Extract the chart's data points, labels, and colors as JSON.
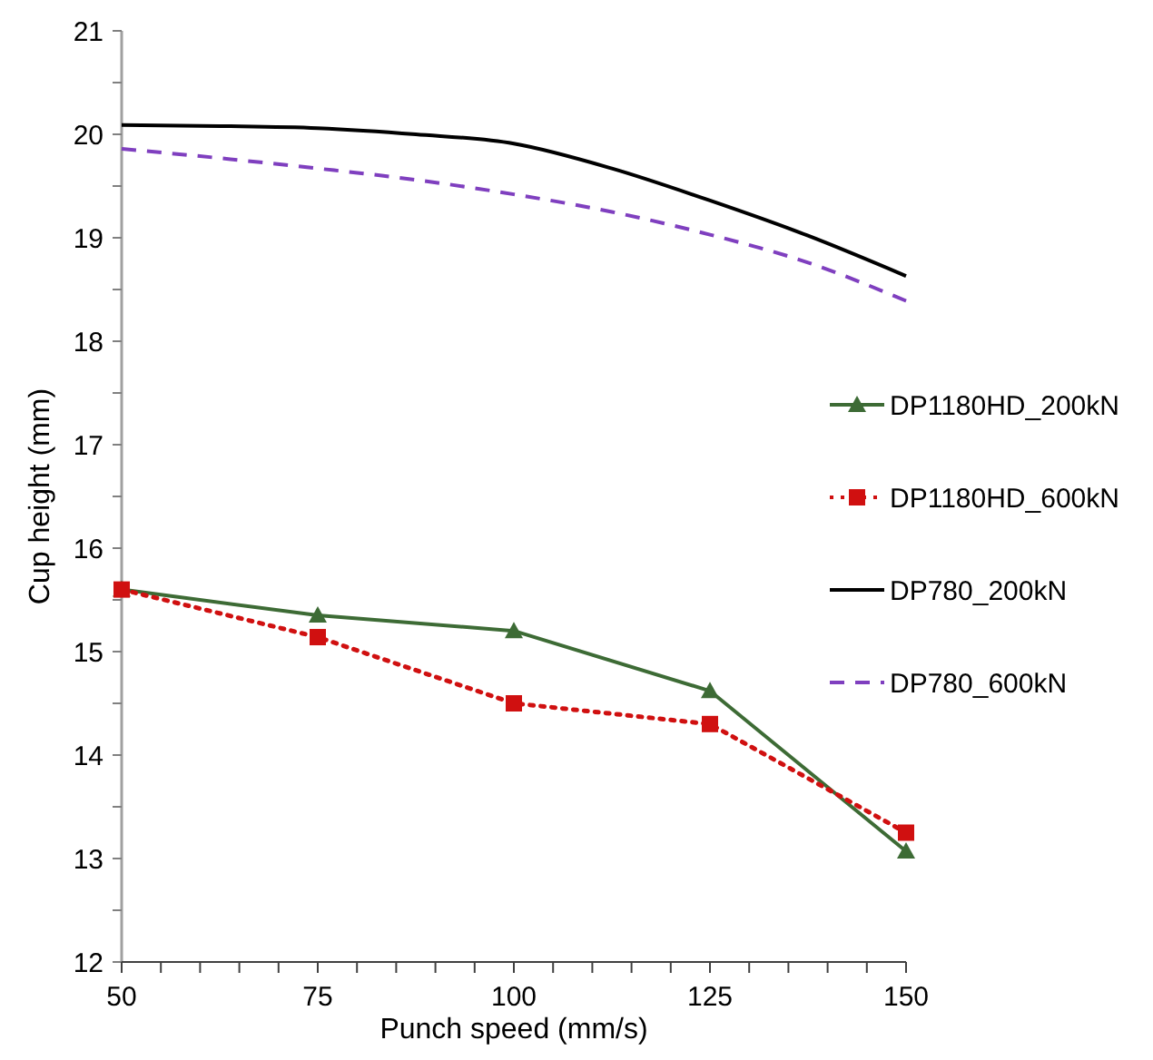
{
  "chart_data": {
    "type": "line",
    "xlabel": "Punch speed (mm/s)",
    "ylabel": "Cup height (mm)",
    "xlim": [
      50,
      150
    ],
    "xticks": [
      50,
      {
        "value": 55,
        "label": null
      },
      {
        "value": 60,
        "label": null
      },
      {
        "value": 65,
        "label": null
      },
      {
        "value": 70,
        "label": null
      },
      75,
      {
        "value": 80,
        "label": null
      },
      {
        "value": 85,
        "label": null
      },
      {
        "value": 90,
        "label": null
      },
      {
        "value": 95,
        "label": null
      },
      100,
      {
        "value": 105,
        "label": null
      },
      {
        "value": 110,
        "label": null
      },
      {
        "value": 115,
        "label": null
      },
      {
        "value": 120,
        "label": null
      },
      125,
      {
        "value": 130,
        "label": null
      },
      {
        "value": 135,
        "label": null
      },
      {
        "value": 140,
        "label": null
      },
      {
        "value": 145,
        "label": null
      },
      150
    ],
    "ylim": [
      12,
      21
    ],
    "yticks": [
      12,
      {
        "value": 12.5,
        "label": null
      },
      13,
      {
        "value": 13.5,
        "label": null
      },
      14,
      {
        "value": 14.5,
        "label": null
      },
      15,
      {
        "value": 15.5,
        "label": null
      },
      16,
      {
        "value": 16.5,
        "label": null
      },
      17,
      {
        "value": 17.5,
        "label": null
      },
      18,
      {
        "value": 18.5,
        "label": null
      },
      19,
      {
        "value": 19.5,
        "label": null
      },
      20,
      {
        "value": 20.5,
        "label": null
      },
      21
    ],
    "grid": false,
    "legend": "right",
    "series": [
      {
        "name": "DP1180HD_200kN",
        "color": "#3d6b35",
        "marker": "triangle",
        "line_style": "solid",
        "x": [
          50,
          75,
          100,
          125,
          150
        ],
        "values": [
          15.6,
          15.35,
          15.2,
          14.62,
          13.07
        ]
      },
      {
        "name": "DP1180HD_600kN",
        "color": "#d01010",
        "marker": "square",
        "line_style": "dotted",
        "x": [
          50,
          75,
          100,
          125,
          150
        ],
        "values": [
          15.6,
          15.14,
          14.5,
          14.3,
          13.25
        ]
      },
      {
        "name": "DP780_200kN",
        "color": "#000000",
        "marker": "none",
        "line_style": "solid",
        "x": [
          50,
          62.5,
          75,
          87.5,
          100,
          112.5,
          125,
          137.5,
          150
        ],
        "values": [
          20.09,
          20.08,
          20.06,
          20.0,
          19.91,
          19.67,
          19.36,
          19.02,
          18.63
        ]
      },
      {
        "name": "DP780_600kN",
        "color": "#7f3fbf",
        "marker": "none",
        "line_style": "dashed",
        "x": [
          50,
          62.5,
          75,
          87.5,
          100,
          112.5,
          125,
          137.5,
          150
        ],
        "values": [
          19.86,
          19.77,
          19.67,
          19.56,
          19.42,
          19.25,
          19.03,
          18.76,
          18.39
        ]
      }
    ]
  }
}
